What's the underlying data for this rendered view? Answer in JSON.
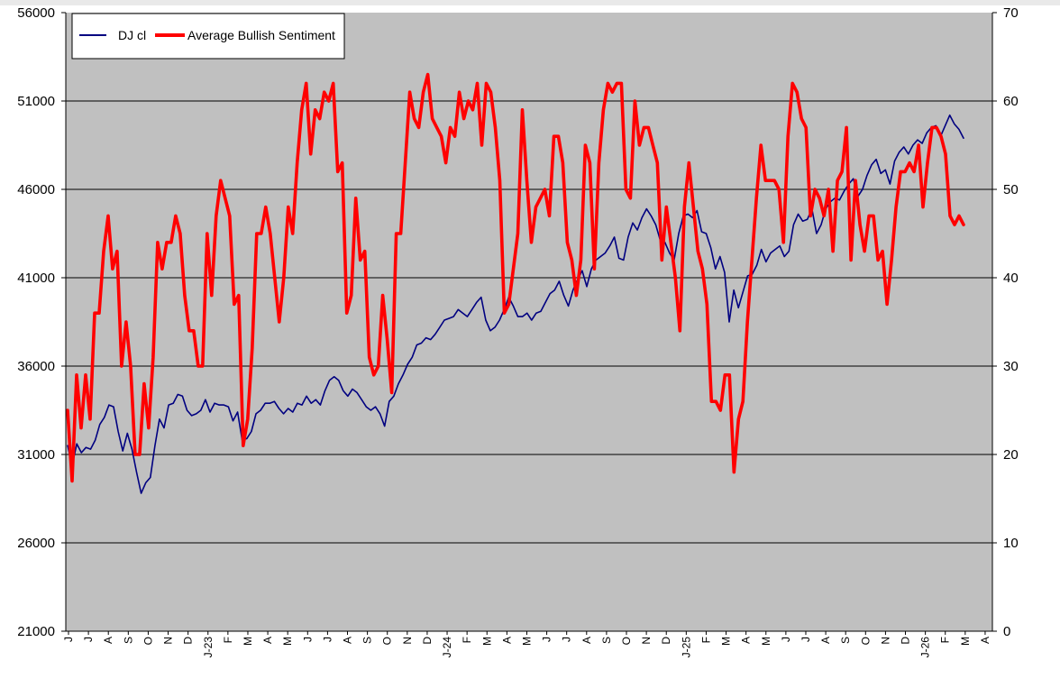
{
  "chart_data": {
    "type": "line",
    "title": "",
    "grid": true,
    "background_color": "#c0c0c0",
    "legend_position": "top-left",
    "y_left": {
      "min": 21000,
      "max": 56000,
      "ticks": [
        "21000",
        "26000",
        "31000",
        "36000",
        "41000",
        "46000",
        "51000",
        "56000"
      ]
    },
    "y_right": {
      "min": 0,
      "max": 70,
      "ticks": [
        "0",
        "10",
        "20",
        "30",
        "40",
        "50",
        "60",
        "70"
      ]
    },
    "x_tick_labels": [
      "J",
      "J",
      "A",
      "S",
      "O",
      "N",
      "D",
      "J-23",
      "F",
      "M",
      "A",
      "M",
      "J",
      "J",
      "A",
      "S",
      "O",
      "N",
      "D",
      "J-24",
      "F",
      "M",
      "A",
      "M",
      "J",
      "J",
      "A",
      "S",
      "O",
      "N",
      "D",
      "J-25",
      "F",
      "M",
      "A",
      "M",
      "J",
      "J",
      "A",
      "S",
      "O",
      "N",
      "D",
      "J-26",
      "F",
      "M",
      "A"
    ],
    "series": [
      {
        "name": "DJ cl",
        "color": "#000080",
        "axis": "left",
        "values": [
          31500,
          30400,
          31600,
          31100,
          31400,
          31300,
          31800,
          32700,
          33100,
          33800,
          33700,
          32300,
          31200,
          32200,
          31300,
          30000,
          28800,
          29400,
          29700,
          31500,
          33000,
          32500,
          33800,
          33900,
          34400,
          34300,
          33500,
          33200,
          33300,
          33500,
          34100,
          33400,
          33900,
          33800,
          33800,
          33700,
          32900,
          33400,
          31800,
          31900,
          32300,
          33300,
          33500,
          33900,
          33900,
          34000,
          33600,
          33300,
          33600,
          33400,
          33900,
          33800,
          34300,
          33900,
          34100,
          33800,
          34600,
          35200,
          35400,
          35200,
          34600,
          34300,
          34700,
          34500,
          34100,
          33700,
          33500,
          33700,
          33300,
          32600,
          34000,
          34300,
          35000,
          35500,
          36100,
          36500,
          37200,
          37300,
          37600,
          37500,
          37800,
          38200,
          38600,
          38700,
          38800,
          39200,
          39000,
          38800,
          39200,
          39600,
          39900,
          38600,
          38000,
          38200,
          38600,
          39200,
          39900,
          39400,
          38800,
          38800,
          39000,
          38600,
          39000,
          39100,
          39600,
          40100,
          40300,
          40800,
          40000,
          39400,
          40300,
          40900,
          41400,
          40500,
          41500,
          42000,
          42200,
          42400,
          42800,
          43300,
          42100,
          42000,
          43300,
          44100,
          43700,
          44400,
          44900,
          44500,
          44000,
          43100,
          43000,
          42400,
          42000,
          43500,
          44500,
          44600,
          44400,
          44800,
          43600,
          43500,
          42700,
          41500,
          42200,
          41300,
          38500,
          40300,
          39300,
          40200,
          41100,
          41200,
          41700,
          42600,
          41900,
          42400,
          42600,
          42800,
          42200,
          42500,
          44000,
          44600,
          44200,
          44300,
          44900,
          43500,
          44000,
          44900,
          45300,
          45500,
          45400,
          45900,
          46300,
          46600,
          45600,
          46000,
          46800,
          47400,
          47700,
          46900,
          47100,
          46300,
          47600,
          48100,
          48400,
          48000,
          48500,
          48800,
          48600,
          49200,
          49500,
          49600,
          49000,
          49600,
          50200,
          49700,
          49400,
          48900
        ]
      },
      {
        "name": "Average Bullish Sentiment",
        "color": "#ff0000",
        "axis": "right",
        "values": [
          25,
          17,
          29,
          23,
          29,
          24,
          36,
          36,
          43,
          47,
          41,
          43,
          30,
          35,
          30,
          20,
          20,
          28,
          23,
          31,
          44,
          41,
          44,
          44,
          47,
          45,
          38,
          34,
          34,
          30,
          30,
          45,
          38,
          47,
          51,
          49,
          47,
          37,
          38,
          21,
          24,
          32,
          45,
          45,
          48,
          45,
          40,
          35,
          40,
          48,
          45,
          53,
          59,
          62,
          54,
          59,
          58,
          61,
          60,
          62,
          52,
          53,
          36,
          38,
          49,
          42,
          43,
          31,
          29,
          30,
          38,
          33,
          27,
          45,
          45,
          53,
          61,
          58,
          57,
          61,
          63,
          58,
          57,
          56,
          53,
          57,
          56,
          61,
          58,
          60,
          59,
          62,
          55,
          62,
          61,
          57,
          51,
          36,
          37,
          41,
          45,
          59,
          51,
          44,
          48,
          49,
          50,
          47,
          56,
          56,
          53,
          44,
          42,
          38,
          42,
          55,
          53,
          41,
          53,
          59,
          62,
          61,
          62,
          62,
          50,
          49,
          60,
          55,
          57,
          57,
          55,
          53,
          42,
          48,
          44,
          40,
          34,
          48,
          53,
          48,
          43,
          41,
          37,
          26,
          26,
          25,
          29,
          29,
          18,
          24,
          26,
          35,
          42,
          49,
          55,
          51,
          51,
          51,
          50,
          44,
          56,
          62,
          61,
          58,
          57,
          47,
          50,
          49,
          47,
          50,
          43,
          51,
          52,
          57,
          42,
          51,
          46,
          43,
          47,
          47,
          42,
          43,
          37,
          42,
          48,
          52,
          52,
          53,
          52,
          55,
          48,
          53,
          57,
          57,
          56,
          54,
          47,
          46,
          47,
          46
        ]
      }
    ]
  }
}
